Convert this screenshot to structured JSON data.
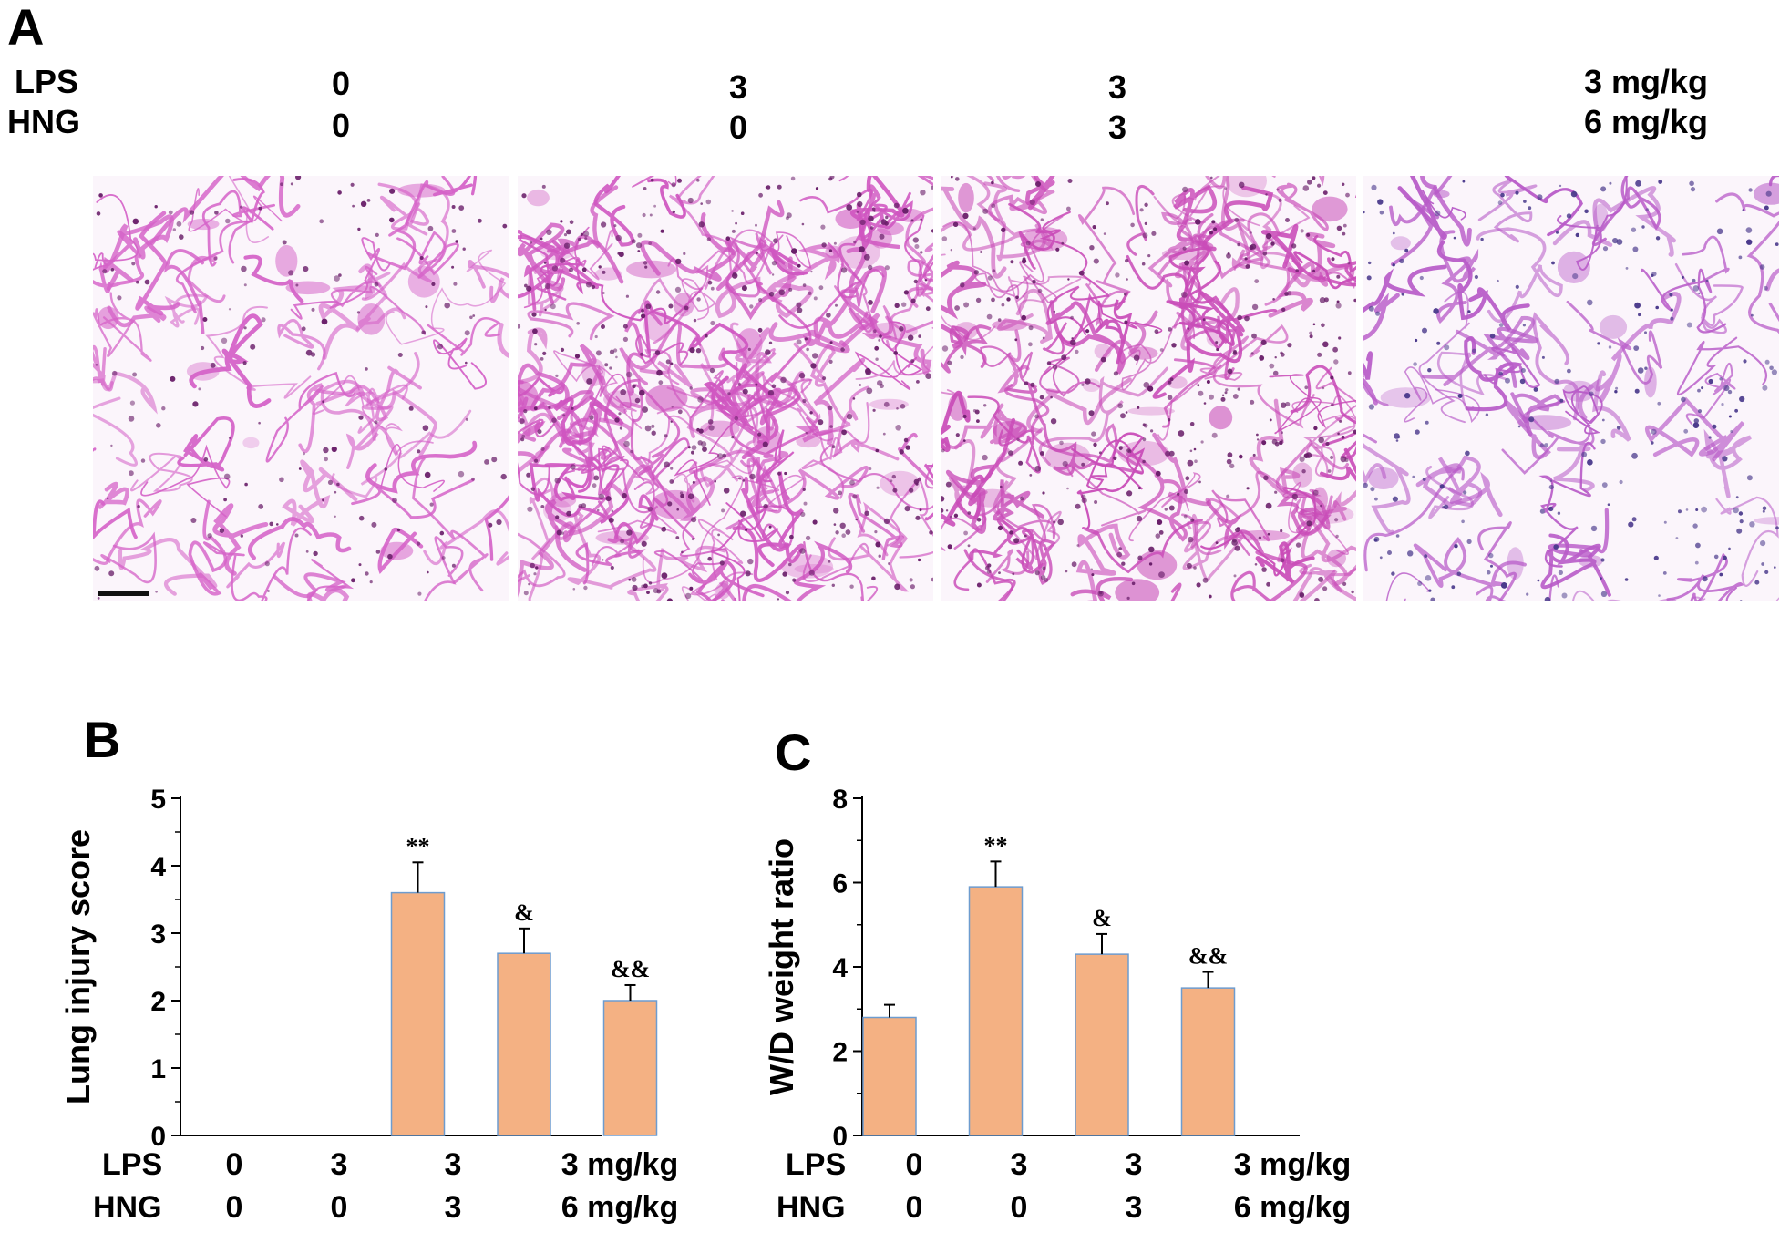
{
  "panel_a": {
    "label": "A",
    "row_labels": {
      "lps": "LPS",
      "hng": "HNG"
    },
    "columns": [
      {
        "lps": "0",
        "hng": "0"
      },
      {
        "lps": "3",
        "hng": "0"
      },
      {
        "lps": "3",
        "hng": "3"
      },
      {
        "lps": "3 mg/kg",
        "hng": "6 mg/kg"
      }
    ],
    "image_tint": [
      "#d563c8",
      "#cf55c0",
      "#c94cb8",
      "#b85bc8"
    ]
  },
  "chart_data": [
    {
      "panel": "B",
      "type": "bar",
      "ylabel": "Lung injury score",
      "ylim": [
        0,
        5
      ],
      "yticks": [
        0,
        1,
        2,
        3,
        4,
        5
      ],
      "categories": [
        "0/0",
        "3/0",
        "3/3",
        "3/6"
      ],
      "values": [
        0,
        3.6,
        2.7,
        2.0
      ],
      "errors": [
        0,
        0.45,
        0.37,
        0.23
      ],
      "annotations": [
        "",
        "**",
        "&",
        "&&"
      ],
      "bar_color": "#f4b183",
      "edge_color": "#6d9ccf",
      "lps_label": "LPS",
      "hng_label": "HNG",
      "lps_values": [
        "0",
        "3",
        "3",
        "3 mg/kg"
      ],
      "hng_values": [
        "0",
        "0",
        "3",
        "6 mg/kg"
      ]
    },
    {
      "panel": "C",
      "type": "bar",
      "ylabel": "W/D weight ratio",
      "ylim": [
        0,
        8
      ],
      "yticks": [
        0,
        2,
        4,
        6,
        8
      ],
      "categories": [
        "0/0",
        "3/0",
        "3/3",
        "3/6"
      ],
      "values": [
        2.8,
        5.9,
        4.3,
        3.5
      ],
      "errors": [
        0.3,
        0.6,
        0.48,
        0.38
      ],
      "annotations": [
        "",
        "**",
        "&",
        "&&"
      ],
      "bar_color": "#f4b183",
      "edge_color": "#6d9ccf",
      "lps_label": "LPS",
      "hng_label": "HNG",
      "lps_values": [
        "0",
        "3",
        "3",
        "3 mg/kg"
      ],
      "hng_values": [
        "0",
        "0",
        "3",
        "6 mg/kg"
      ]
    }
  ]
}
